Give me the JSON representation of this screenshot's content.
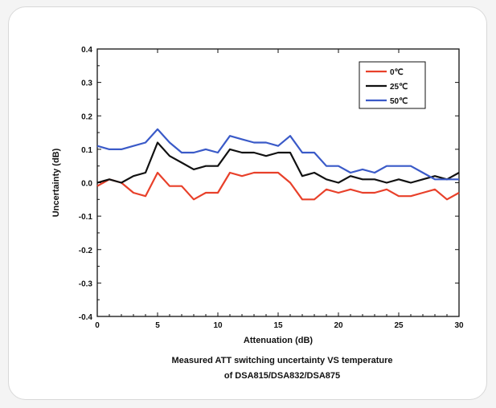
{
  "chart_data": {
    "type": "line",
    "xlabel": "Attenuation (dB)",
    "ylabel": "Uncertainty (dB)",
    "xlim": [
      0,
      30
    ],
    "ylim": [
      -0.4,
      0.4
    ],
    "xticks": [
      0,
      5,
      10,
      15,
      20,
      25,
      30
    ],
    "yticks": [
      -0.4,
      -0.3,
      -0.2,
      -0.1,
      0.0,
      0.1,
      0.2,
      0.3,
      0.4
    ],
    "ytick_labels": [
      "-0.4",
      "-0.3",
      "-0.2",
      "-0.1",
      "0.0",
      "0.1",
      "0.2",
      "0.3",
      "0.4"
    ],
    "xtick_labels": [
      "0",
      "5",
      "10",
      "15",
      "20",
      "25",
      "30"
    ],
    "grid": false,
    "legend_position": "top-right",
    "x": [
      0,
      1,
      2,
      3,
      4,
      5,
      6,
      7,
      8,
      9,
      10,
      11,
      12,
      13,
      14,
      15,
      16,
      17,
      18,
      19,
      20,
      21,
      22,
      23,
      24,
      25,
      26,
      27,
      28,
      29,
      30
    ],
    "series": [
      {
        "name": "0℃",
        "color": "#e8402a",
        "values": [
          -0.01,
          0.01,
          0.0,
          -0.03,
          -0.04,
          0.03,
          -0.01,
          -0.01,
          -0.05,
          -0.03,
          -0.03,
          0.03,
          0.02,
          0.03,
          0.03,
          0.03,
          0.0,
          -0.05,
          -0.05,
          -0.02,
          -0.03,
          -0.02,
          -0.03,
          -0.03,
          -0.02,
          -0.04,
          -0.04,
          -0.03,
          -0.02,
          -0.05,
          -0.03
        ]
      },
      {
        "name": "25℃",
        "color": "#111111",
        "values": [
          0.0,
          0.01,
          0.0,
          0.02,
          0.03,
          0.12,
          0.08,
          0.06,
          0.04,
          0.05,
          0.05,
          0.1,
          0.09,
          0.09,
          0.08,
          0.09,
          0.09,
          0.02,
          0.03,
          0.01,
          0.0,
          0.02,
          0.01,
          0.01,
          0.0,
          0.01,
          0.0,
          0.01,
          0.02,
          0.01,
          0.03
        ]
      },
      {
        "name": "50℃",
        "color": "#3a5ac8",
        "values": [
          0.11,
          0.1,
          0.1,
          0.11,
          0.12,
          0.16,
          0.12,
          0.09,
          0.09,
          0.1,
          0.09,
          0.14,
          0.13,
          0.12,
          0.12,
          0.11,
          0.14,
          0.09,
          0.09,
          0.05,
          0.05,
          0.03,
          0.04,
          0.03,
          0.05,
          0.05,
          0.05,
          0.03,
          0.01,
          0.01,
          0.01
        ]
      }
    ]
  },
  "caption": {
    "line1": "Measured ATT switching uncertainty VS temperature",
    "line2": "of DSA815/DSA832/DSA875"
  }
}
